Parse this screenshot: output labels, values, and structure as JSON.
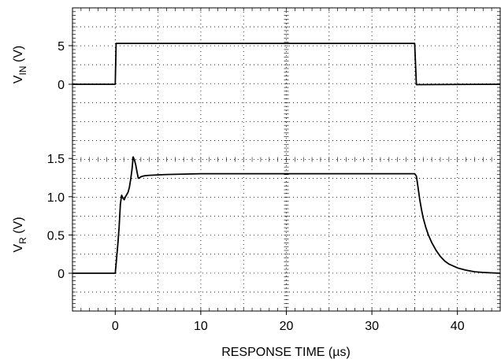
{
  "chart_data": {
    "type": "line",
    "xlabel": "RESPONSE TIME (µs)",
    "xlim": [
      -5,
      45
    ],
    "x_ticks": [
      "0",
      "10",
      "20",
      "30",
      "40"
    ],
    "x_tick_values": [
      0,
      10,
      20,
      30,
      40
    ],
    "grid": "dotted",
    "panels": [
      {
        "ylabel_main": "V",
        "ylabel_sub": "IN",
        "ylabel_unit": " (V)",
        "y_ticks": [
          "5",
          "0"
        ],
        "y_tick_values": [
          5,
          0
        ],
        "series": [
          {
            "x": [
              -5,
              0,
              0.1,
              35,
              35.2,
              45
            ],
            "y": [
              0,
              0,
              5.3,
              5.3,
              -0.05,
              0
            ]
          }
        ]
      },
      {
        "ylabel_main": "V",
        "ylabel_sub": "R",
        "ylabel_unit": " (V)",
        "y_ticks": [
          "1.5",
          "1.0",
          "0.5",
          "0"
        ],
        "y_tick_values": [
          1.5,
          1.0,
          0.5,
          0
        ],
        "series": [
          {
            "x": [
              -5,
              0,
              0.15,
              0.3,
              0.45,
              0.6,
              0.75,
              0.9,
              1.05,
              1.2,
              1.35,
              1.5,
              1.65,
              1.8,
              1.95,
              2.1,
              2.25,
              2.4,
              2.55,
              2.7,
              2.85,
              3.0,
              3.25,
              3.5,
              4.0,
              5.0,
              6.0,
              8.0,
              10.0,
              15.0,
              20.0,
              25.0,
              30.0,
              35.0,
              35.2,
              35.4,
              35.6,
              35.8,
              36.0,
              36.3,
              36.6,
              37.0,
              37.5,
              38.0,
              38.5,
              39.0,
              40.0,
              41.0,
              42.0,
              43.0,
              44.0,
              45.0
            ],
            "y": [
              0,
              0,
              0.18,
              0.38,
              0.6,
              0.9,
              1.02,
              0.98,
              0.96,
              1.0,
              1.03,
              1.06,
              1.12,
              1.22,
              1.35,
              1.52,
              1.48,
              1.41,
              1.32,
              1.24,
              1.25,
              1.26,
              1.27,
              1.275,
              1.28,
              1.285,
              1.29,
              1.295,
              1.3,
              1.3,
              1.3,
              1.3,
              1.3,
              1.3,
              1.27,
              1.12,
              0.96,
              0.83,
              0.72,
              0.6,
              0.5,
              0.4,
              0.3,
              0.22,
              0.16,
              0.12,
              0.07,
              0.04,
              0.02,
              0.01,
              0.005,
              0.0
            ]
          }
        ]
      }
    ]
  }
}
